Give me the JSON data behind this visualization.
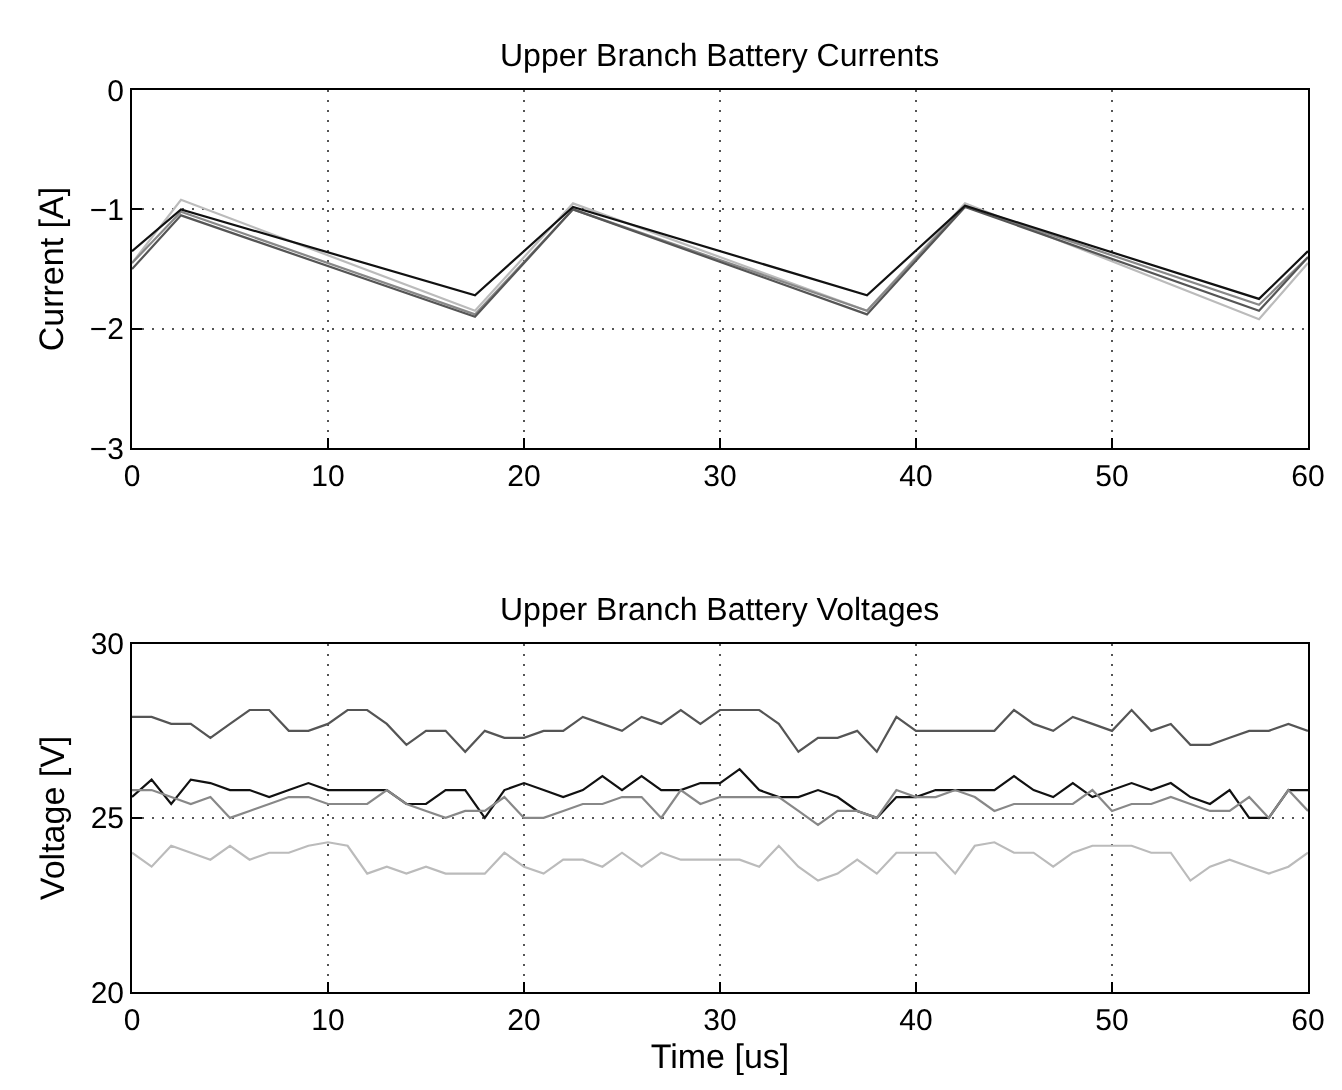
{
  "chart_data": [
    {
      "type": "line",
      "title": "Upper Branch Battery Currents",
      "ylabel": "Current [A]",
      "xlim": [
        0,
        60
      ],
      "xticks": [
        0,
        10,
        20,
        30,
        40,
        50,
        60
      ],
      "ylim": [
        -3,
        0
      ],
      "yticks": [
        -3,
        -2,
        -1,
        0
      ],
      "grid": true,
      "marker": "none",
      "line_style": "solid",
      "x": [
        0,
        2.5,
        17.5,
        22.5,
        37.5,
        42.5,
        57.5,
        60
      ],
      "series": [
        {
          "color": "#bbbbbb",
          "values": [
            -1.45,
            -0.92,
            -1.85,
            -0.95,
            -1.85,
            -0.95,
            -1.92,
            -1.45
          ]
        },
        {
          "color": "#888888",
          "values": [
            -1.45,
            -1.02,
            -1.88,
            -1.0,
            -1.85,
            -0.97,
            -1.8,
            -1.4
          ]
        },
        {
          "color": "#555555",
          "values": [
            -1.5,
            -1.05,
            -1.9,
            -1.0,
            -1.88,
            -0.98,
            -1.85,
            -1.4
          ]
        },
        {
          "color": "#111111",
          "values": [
            -1.35,
            -1.0,
            -1.72,
            -0.98,
            -1.72,
            -0.97,
            -1.75,
            -1.35
          ]
        }
      ]
    },
    {
      "type": "line",
      "title": "Upper Branch Battery Voltages",
      "xlabel": "Time [us]",
      "ylabel": "Voltage [V]",
      "xlim": [
        0,
        60
      ],
      "xticks": [
        0,
        10,
        20,
        30,
        40,
        50,
        60
      ],
      "ylim": [
        20,
        30
      ],
      "yticks": [
        20,
        25,
        30
      ],
      "grid": true,
      "marker": "none",
      "line_style": "solid",
      "x": [
        0,
        1,
        2,
        3,
        4,
        5,
        6,
        7,
        8,
        9,
        10,
        11,
        12,
        13,
        14,
        15,
        16,
        17,
        18,
        19,
        20,
        21,
        22,
        23,
        24,
        25,
        26,
        27,
        28,
        29,
        30,
        31,
        32,
        33,
        34,
        35,
        36,
        37,
        38,
        39,
        40,
        41,
        42,
        43,
        44,
        45,
        46,
        47,
        48,
        49,
        50,
        51,
        52,
        53,
        54,
        55,
        56,
        57,
        58,
        59,
        60
      ],
      "series": [
        {
          "color": "#555555",
          "values": [
            27.9,
            27.9,
            27.7,
            27.7,
            27.3,
            27.7,
            28.1,
            28.1,
            27.5,
            27.5,
            27.7,
            28.1,
            28.1,
            27.7,
            27.1,
            27.5,
            27.5,
            26.9,
            27.5,
            27.3,
            27.3,
            27.5,
            27.5,
            27.9,
            27.7,
            27.5,
            27.9,
            27.7,
            28.1,
            27.7,
            28.1,
            28.1,
            28.1,
            27.7,
            26.9,
            27.3,
            27.3,
            27.5,
            26.9,
            27.9,
            27.5,
            27.5,
            27.5,
            27.5,
            27.5,
            28.1,
            27.7,
            27.5,
            27.9,
            27.7,
            27.5,
            28.1,
            27.5,
            27.7,
            27.1,
            27.1,
            27.3,
            27.5,
            27.5,
            27.7,
            27.5
          ]
        },
        {
          "color": "#111111",
          "values": [
            25.6,
            26.1,
            25.4,
            26.1,
            26.0,
            25.8,
            25.8,
            25.6,
            25.8,
            26.0,
            25.8,
            25.8,
            25.8,
            25.8,
            25.4,
            25.4,
            25.8,
            25.8,
            25.0,
            25.8,
            26.0,
            25.8,
            25.6,
            25.8,
            26.2,
            25.8,
            26.2,
            25.8,
            25.8,
            26.0,
            26.0,
            26.4,
            25.8,
            25.6,
            25.6,
            25.8,
            25.6,
            25.2,
            25.0,
            25.6,
            25.6,
            25.8,
            25.8,
            25.8,
            25.8,
            26.2,
            25.8,
            25.6,
            26.0,
            25.6,
            25.8,
            26.0,
            25.8,
            26.0,
            25.6,
            25.4,
            25.8,
            25.0,
            25.0,
            25.8,
            25.8
          ]
        },
        {
          "color": "#888888",
          "values": [
            25.8,
            25.8,
            25.6,
            25.4,
            25.6,
            25.0,
            25.2,
            25.4,
            25.6,
            25.6,
            25.4,
            25.4,
            25.4,
            25.8,
            25.4,
            25.2,
            25.0,
            25.2,
            25.2,
            25.6,
            25.0,
            25.0,
            25.2,
            25.4,
            25.4,
            25.6,
            25.6,
            25.0,
            25.8,
            25.4,
            25.6,
            25.6,
            25.6,
            25.6,
            25.2,
            24.8,
            25.2,
            25.2,
            25.0,
            25.8,
            25.6,
            25.6,
            25.8,
            25.6,
            25.2,
            25.4,
            25.4,
            25.4,
            25.4,
            25.8,
            25.2,
            25.4,
            25.4,
            25.6,
            25.4,
            25.2,
            25.2,
            25.6,
            25.0,
            25.8,
            25.2
          ]
        },
        {
          "color": "#bbbbbb",
          "values": [
            24.0,
            23.6,
            24.2,
            24.0,
            23.8,
            24.2,
            23.8,
            24.0,
            24.0,
            24.2,
            24.3,
            24.2,
            23.4,
            23.6,
            23.4,
            23.6,
            23.4,
            23.4,
            23.4,
            24.0,
            23.6,
            23.4,
            23.8,
            23.8,
            23.6,
            24.0,
            23.6,
            24.0,
            23.8,
            23.8,
            23.8,
            23.8,
            23.6,
            24.2,
            23.6,
            23.2,
            23.4,
            23.8,
            23.4,
            24.0,
            24.0,
            24.0,
            23.4,
            24.2,
            24.3,
            24.0,
            24.0,
            23.6,
            24.0,
            24.2,
            24.2,
            24.2,
            24.0,
            24.0,
            23.2,
            23.6,
            23.8,
            23.6,
            23.4,
            23.6,
            24.0
          ]
        }
      ]
    }
  ]
}
